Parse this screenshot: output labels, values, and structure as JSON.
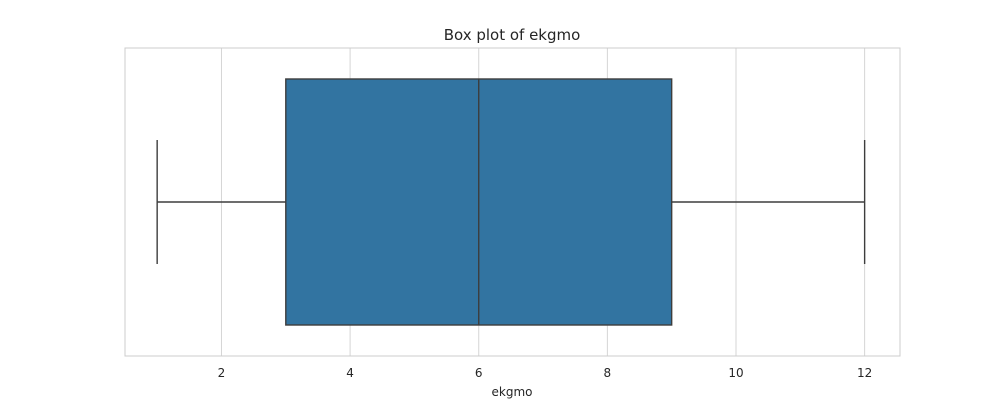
{
  "chart_data": {
    "type": "box",
    "title": "Box plot of ekgmo",
    "xlabel": "ekgmo",
    "ylabel": "",
    "orientation": "horizontal",
    "xlim": [
      0.5,
      12.55
    ],
    "xticks": [
      2,
      4,
      6,
      8,
      10,
      12
    ],
    "grid": true,
    "series": [
      {
        "whisker_low": 1,
        "q1": 3,
        "median": 6,
        "q3": 9,
        "whisker_high": 12
      }
    ],
    "colors": {
      "box_fill": "#3274a1",
      "line": "#3d3d3d",
      "grid": "#d5d5d5",
      "frame": "#cccccc"
    }
  }
}
